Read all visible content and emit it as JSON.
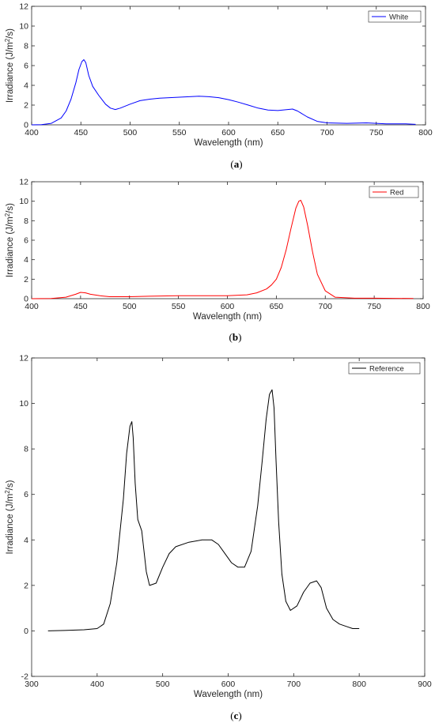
{
  "chart_data": [
    {
      "type": "line",
      "caption": "(a)",
      "xlabel": "Wavelength (nm)",
      "ylabel": "Irradiance (J/m²/s)",
      "xlim": [
        400,
        800
      ],
      "ylim": [
        0,
        12
      ],
      "xticks": [
        400,
        450,
        500,
        550,
        600,
        650,
        700,
        750,
        800
      ],
      "yticks": [
        0,
        2,
        4,
        6,
        8,
        10,
        12
      ],
      "grid": false,
      "legend": "top-right",
      "series": [
        {
          "name": "White",
          "color": "#0000ff",
          "x": [
            400,
            410,
            420,
            430,
            435,
            440,
            445,
            448,
            451,
            453,
            455,
            458,
            462,
            468,
            475,
            480,
            485,
            490,
            500,
            510,
            520,
            530,
            540,
            550,
            560,
            570,
            580,
            590,
            600,
            610,
            620,
            630,
            640,
            650,
            660,
            665,
            670,
            680,
            690,
            700,
            720,
            740,
            760,
            780,
            790
          ],
          "values": [
            0,
            0.02,
            0.15,
            0.7,
            1.4,
            2.6,
            4.3,
            5.6,
            6.4,
            6.6,
            6.3,
            5.0,
            3.9,
            3.0,
            2.1,
            1.7,
            1.55,
            1.7,
            2.1,
            2.45,
            2.6,
            2.7,
            2.75,
            2.8,
            2.85,
            2.9,
            2.85,
            2.75,
            2.55,
            2.3,
            2.0,
            1.7,
            1.5,
            1.45,
            1.55,
            1.6,
            1.4,
            0.8,
            0.35,
            0.2,
            0.15,
            0.2,
            0.1,
            0.1,
            0.05
          ]
        }
      ]
    },
    {
      "type": "line",
      "caption": "(b)",
      "xlabel": "Wavelength (nm)",
      "ylabel": "Irradiance (J/m²/s)",
      "xlim": [
        400,
        800
      ],
      "ylim": [
        0,
        12
      ],
      "xticks": [
        400,
        450,
        500,
        550,
        600,
        650,
        700,
        750,
        800
      ],
      "yticks": [
        0,
        2,
        4,
        6,
        8,
        10,
        12
      ],
      "grid": false,
      "legend": "top-right",
      "series": [
        {
          "name": "Red",
          "color": "#ff0000",
          "x": [
            400,
            420,
            435,
            445,
            450,
            455,
            460,
            470,
            480,
            500,
            520,
            550,
            580,
            600,
            620,
            630,
            640,
            645,
            650,
            655,
            660,
            665,
            670,
            673,
            675,
            678,
            682,
            687,
            692,
            700,
            710,
            730,
            750,
            790
          ],
          "values": [
            0,
            0.02,
            0.15,
            0.45,
            0.65,
            0.6,
            0.45,
            0.3,
            0.2,
            0.2,
            0.25,
            0.3,
            0.3,
            0.3,
            0.4,
            0.6,
            1.0,
            1.4,
            2.0,
            3.2,
            5.0,
            7.2,
            9.3,
            10.0,
            10.1,
            9.4,
            7.5,
            4.8,
            2.5,
            0.8,
            0.15,
            0.05,
            0.05,
            0.02
          ]
        }
      ]
    },
    {
      "type": "line",
      "caption": "(c)",
      "xlabel": "Wavelength (nm)",
      "ylabel": "Irradiance (J/m²/s)",
      "xlim": [
        300,
        900
      ],
      "ylim": [
        -2,
        12
      ],
      "xticks": [
        300,
        400,
        500,
        600,
        700,
        800,
        900
      ],
      "yticks": [
        -2,
        0,
        2,
        4,
        6,
        8,
        10,
        12
      ],
      "grid": false,
      "legend": "top-right",
      "series": [
        {
          "name": "Reference",
          "color": "#000000",
          "x": [
            325,
            350,
            380,
            400,
            410,
            420,
            430,
            440,
            445,
            450,
            453,
            455,
            458,
            462,
            468,
            475,
            480,
            490,
            500,
            510,
            520,
            540,
            560,
            575,
            585,
            595,
            605,
            615,
            625,
            635,
            645,
            652,
            658,
            663,
            667,
            670,
            673,
            677,
            682,
            688,
            695,
            705,
            715,
            725,
            735,
            742,
            750,
            760,
            770,
            780,
            790,
            800
          ],
          "values": [
            0,
            0.02,
            0.05,
            0.1,
            0.3,
            1.2,
            3.0,
            5.8,
            7.8,
            9.0,
            9.2,
            8.5,
            6.5,
            4.9,
            4.4,
            2.6,
            2.0,
            2.1,
            2.8,
            3.4,
            3.7,
            3.9,
            4.0,
            4.0,
            3.8,
            3.4,
            3.0,
            2.8,
            2.8,
            3.5,
            5.5,
            7.5,
            9.3,
            10.4,
            10.6,
            9.8,
            7.5,
            4.8,
            2.5,
            1.3,
            0.9,
            1.1,
            1.7,
            2.1,
            2.2,
            1.9,
            1.0,
            0.5,
            0.3,
            0.2,
            0.1,
            0.1
          ]
        }
      ]
    }
  ]
}
